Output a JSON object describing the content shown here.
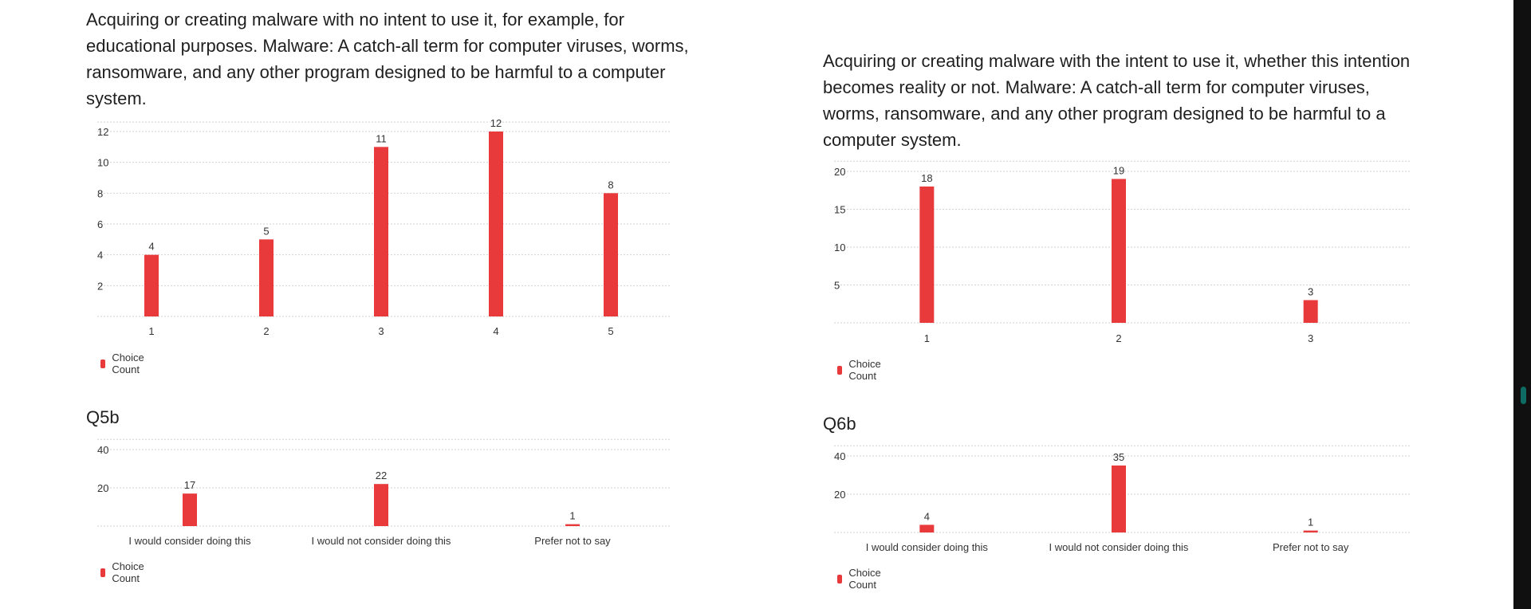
{
  "accent_color": "#e8393b",
  "grid_color": "#d2d2d2",
  "panels": [
    {
      "question": "Acquiring or creating malware with no intent to use it, for example, for educational purposes. Malware: A catch-all term for computer viruses, worms, ransomware, and any other program designed to be harmful to a computer system.",
      "legend": "Choice Count",
      "subtitle": "Q5b",
      "legend2": "Choice Count"
    },
    {
      "question": "Acquiring or creating malware with the intent to use it, whether this intention becomes reality or not. Malware: A catch-all term for computer viruses, worms, ransomware, and any other program designed to be harmful to a computer system.",
      "legend": "Choice Count",
      "subtitle": "Q6b",
      "legend2": "Choice Count"
    }
  ],
  "chart_data": [
    {
      "type": "bar",
      "categories": [
        "1",
        "2",
        "3",
        "4",
        "5"
      ],
      "series": [
        {
          "name": "Choice Count",
          "values": [
            4,
            5,
            11,
            12,
            8
          ]
        }
      ],
      "yticks": [
        2,
        4,
        6,
        8,
        10,
        12
      ],
      "ylim": [
        0,
        12
      ],
      "legend_position": "bottom-left",
      "grid": true
    },
    {
      "type": "bar",
      "categories": [
        "I would consider doing this",
        "I would not consider doing this",
        "Prefer not to say"
      ],
      "series": [
        {
          "name": "Choice Count",
          "values": [
            17,
            22,
            1
          ]
        }
      ],
      "yticks": [
        20,
        40
      ],
      "ylim": [
        0,
        40
      ],
      "legend_position": "bottom-left",
      "grid": true
    },
    {
      "type": "bar",
      "categories": [
        "1",
        "2",
        "3"
      ],
      "series": [
        {
          "name": "Choice Count",
          "values": [
            18,
            19,
            3
          ]
        }
      ],
      "yticks": [
        5,
        10,
        15,
        20
      ],
      "ylim": [
        0,
        20
      ],
      "legend_position": "bottom-left",
      "grid": true
    },
    {
      "type": "bar",
      "categories": [
        "I would consider doing this",
        "I would not consider doing this",
        "Prefer not to say"
      ],
      "series": [
        {
          "name": "Choice Count",
          "values": [
            4,
            35,
            1
          ]
        }
      ],
      "yticks": [
        20,
        40
      ],
      "ylim": [
        0,
        40
      ],
      "legend_position": "bottom-left",
      "grid": true
    }
  ]
}
